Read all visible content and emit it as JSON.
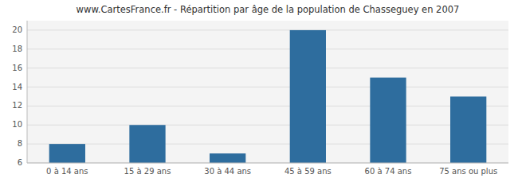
{
  "chart_data": {
    "type": "bar",
    "title": "www.CartesFrance.fr - Répartition par âge de la population de Chasseguey en 2007",
    "categories": [
      "0 à 14 ans",
      "15 à 29 ans",
      "30 à 44 ans",
      "45 à 59 ans",
      "60 à 74 ans",
      "75 ans ou plus"
    ],
    "values": [
      8,
      10,
      7,
      20,
      15,
      13
    ],
    "color": "#2e6d9e",
    "ylim": [
      6,
      21
    ],
    "yticks": [
      6,
      8,
      10,
      12,
      14,
      16,
      18,
      20
    ],
    "grid": true
  }
}
